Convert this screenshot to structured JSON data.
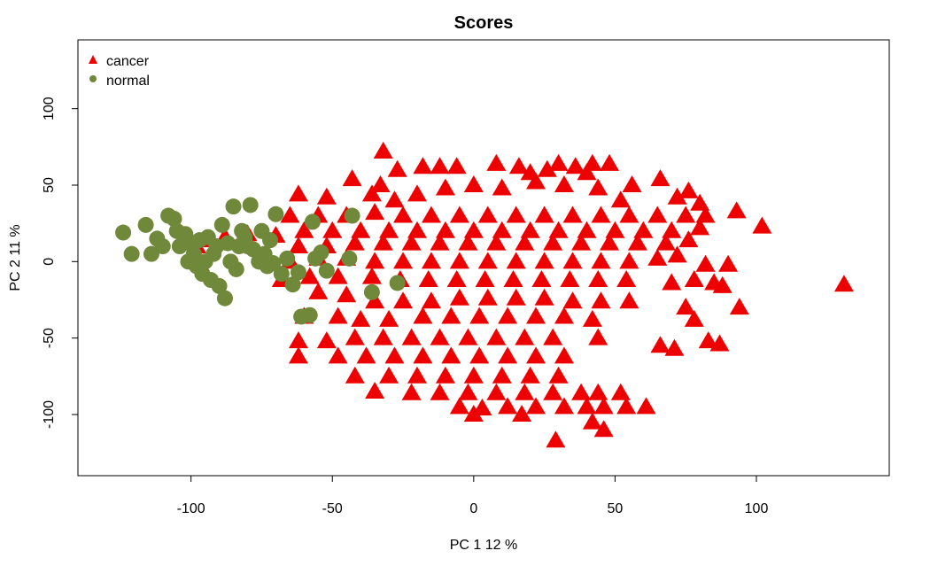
{
  "chart_data": {
    "type": "scatter",
    "title": "Scores",
    "xlabel": "PC 1 12 %",
    "ylabel": "PC 2 11 %",
    "xlim": [
      -140,
      147
    ],
    "ylim": [
      -140,
      145
    ],
    "x_ticks": [
      -100,
      -50,
      0,
      50,
      100
    ],
    "y_ticks": [
      -100,
      -50,
      0,
      50,
      100
    ],
    "x_tick_labels": [
      "-100",
      "-50",
      "0",
      "50",
      "100"
    ],
    "y_tick_labels": [
      "-100",
      "-50",
      "0",
      "50",
      "100"
    ],
    "grid": false,
    "legend_position": "top-left",
    "series": [
      {
        "name": "cancer",
        "marker": "triangle",
        "color": "#ee0000",
        "points": [
          [
            -32,
            72
          ],
          [
            -27,
            60
          ],
          [
            -18,
            62
          ],
          [
            -12,
            62
          ],
          [
            -6,
            62
          ],
          [
            8,
            64
          ],
          [
            16,
            62
          ],
          [
            30,
            64
          ],
          [
            36,
            62
          ],
          [
            42,
            64
          ],
          [
            48,
            64
          ],
          [
            26,
            60
          ],
          [
            20,
            58
          ],
          [
            40,
            58
          ],
          [
            -62,
            44
          ],
          [
            -52,
            42
          ],
          [
            -43,
            54
          ],
          [
            -33,
            50
          ],
          [
            -36,
            44
          ],
          [
            -28,
            40
          ],
          [
            -20,
            44
          ],
          [
            -10,
            48
          ],
          [
            0,
            50
          ],
          [
            10,
            48
          ],
          [
            22,
            52
          ],
          [
            32,
            50
          ],
          [
            44,
            48
          ],
          [
            56,
            50
          ],
          [
            66,
            54
          ],
          [
            52,
            40
          ],
          [
            72,
            42
          ],
          [
            76,
            46
          ],
          [
            -65,
            30
          ],
          [
            -55,
            30
          ],
          [
            -45,
            30
          ],
          [
            -35,
            32
          ],
          [
            -25,
            30
          ],
          [
            -15,
            30
          ],
          [
            -5,
            30
          ],
          [
            5,
            30
          ],
          [
            15,
            30
          ],
          [
            25,
            30
          ],
          [
            35,
            30
          ],
          [
            45,
            30
          ],
          [
            55,
            30
          ],
          [
            65,
            30
          ],
          [
            75,
            30
          ],
          [
            80,
            38
          ],
          [
            82,
            30
          ],
          [
            93,
            33
          ],
          [
            -60,
            20
          ],
          [
            -50,
            20
          ],
          [
            -40,
            20
          ],
          [
            -30,
            20
          ],
          [
            -20,
            20
          ],
          [
            -10,
            20
          ],
          [
            0,
            20
          ],
          [
            10,
            20
          ],
          [
            20,
            20
          ],
          [
            30,
            20
          ],
          [
            40,
            20
          ],
          [
            50,
            20
          ],
          [
            60,
            20
          ],
          [
            70,
            20
          ],
          [
            80,
            22
          ],
          [
            102,
            23
          ],
          [
            -70,
            17
          ],
          [
            -80,
            18
          ],
          [
            -88,
            16
          ],
          [
            -95,
            14
          ],
          [
            -98,
            10
          ],
          [
            -62,
            10
          ],
          [
            -52,
            10
          ],
          [
            -42,
            12
          ],
          [
            -32,
            12
          ],
          [
            -22,
            12
          ],
          [
            -12,
            12
          ],
          [
            -2,
            12
          ],
          [
            8,
            12
          ],
          [
            18,
            12
          ],
          [
            28,
            12
          ],
          [
            38,
            12
          ],
          [
            48,
            12
          ],
          [
            58,
            12
          ],
          [
            68,
            12
          ],
          [
            76,
            14
          ],
          [
            -65,
            0
          ],
          [
            -55,
            2
          ],
          [
            -45,
            2
          ],
          [
            -35,
            0
          ],
          [
            -25,
            0
          ],
          [
            -15,
            0
          ],
          [
            -5,
            0
          ],
          [
            5,
            0
          ],
          [
            15,
            0
          ],
          [
            25,
            0
          ],
          [
            35,
            0
          ],
          [
            45,
            0
          ],
          [
            55,
            0
          ],
          [
            65,
            2
          ],
          [
            72,
            4
          ],
          [
            82,
            -2
          ],
          [
            90,
            -2
          ],
          [
            -68,
            -12
          ],
          [
            -58,
            -10
          ],
          [
            -48,
            -10
          ],
          [
            -36,
            -10
          ],
          [
            -26,
            -12
          ],
          [
            -16,
            -12
          ],
          [
            -6,
            -12
          ],
          [
            4,
            -12
          ],
          [
            14,
            -12
          ],
          [
            24,
            -12
          ],
          [
            34,
            -12
          ],
          [
            44,
            -12
          ],
          [
            54,
            -12
          ],
          [
            70,
            -14
          ],
          [
            78,
            -12
          ],
          [
            85,
            -14
          ],
          [
            88,
            -16
          ],
          [
            131,
            -15
          ],
          [
            -55,
            -20
          ],
          [
            -45,
            -22
          ],
          [
            -35,
            -26
          ],
          [
            -25,
            -26
          ],
          [
            -15,
            -26
          ],
          [
            -5,
            -24
          ],
          [
            5,
            -24
          ],
          [
            15,
            -24
          ],
          [
            25,
            -24
          ],
          [
            35,
            -26
          ],
          [
            45,
            -26
          ],
          [
            55,
            -26
          ],
          [
            75,
            -30
          ],
          [
            94,
            -30
          ],
          [
            -60,
            -36
          ],
          [
            -48,
            -36
          ],
          [
            -40,
            -38
          ],
          [
            -30,
            -38
          ],
          [
            -18,
            -36
          ],
          [
            -8,
            -36
          ],
          [
            2,
            -36
          ],
          [
            12,
            -36
          ],
          [
            22,
            -36
          ],
          [
            32,
            -36
          ],
          [
            42,
            -38
          ],
          [
            78,
            -38
          ],
          [
            -62,
            -52
          ],
          [
            -52,
            -52
          ],
          [
            -42,
            -50
          ],
          [
            -32,
            -50
          ],
          [
            -22,
            -50
          ],
          [
            -12,
            -50
          ],
          [
            -2,
            -50
          ],
          [
            8,
            -50
          ],
          [
            18,
            -50
          ],
          [
            28,
            -50
          ],
          [
            44,
            -50
          ],
          [
            66,
            -55
          ],
          [
            71,
            -57
          ],
          [
            83,
            -52
          ],
          [
            87,
            -54
          ],
          [
            -62,
            -62
          ],
          [
            -48,
            -62
          ],
          [
            -38,
            -62
          ],
          [
            -28,
            -62
          ],
          [
            -18,
            -62
          ],
          [
            -8,
            -62
          ],
          [
            2,
            -62
          ],
          [
            12,
            -62
          ],
          [
            22,
            -62
          ],
          [
            32,
            -62
          ],
          [
            -42,
            -75
          ],
          [
            -30,
            -75
          ],
          [
            -20,
            -75
          ],
          [
            -10,
            -75
          ],
          [
            0,
            -75
          ],
          [
            10,
            -75
          ],
          [
            20,
            -75
          ],
          [
            30,
            -75
          ],
          [
            -35,
            -85
          ],
          [
            -22,
            -86
          ],
          [
            -12,
            -86
          ],
          [
            -2,
            -86
          ],
          [
            8,
            -86
          ],
          [
            18,
            -86
          ],
          [
            28,
            -86
          ],
          [
            38,
            -86
          ],
          [
            44,
            -86
          ],
          [
            52,
            -86
          ],
          [
            -5,
            -95
          ],
          [
            3,
            -96
          ],
          [
            12,
            -95
          ],
          [
            22,
            -95
          ],
          [
            32,
            -95
          ],
          [
            40,
            -95
          ],
          [
            46,
            -95
          ],
          [
            54,
            -95
          ],
          [
            61,
            -95
          ],
          [
            0,
            -100
          ],
          [
            17,
            -100
          ],
          [
            42,
            -105
          ],
          [
            46,
            -110
          ],
          [
            29,
            -117
          ]
        ]
      },
      {
        "name": "normal",
        "marker": "circle",
        "color": "#6f883a",
        "points": [
          [
            -124,
            19
          ],
          [
            -121,
            5
          ],
          [
            -116,
            24
          ],
          [
            -114,
            5
          ],
          [
            -112,
            15
          ],
          [
            -110,
            10
          ],
          [
            -108,
            30
          ],
          [
            -106,
            28
          ],
          [
            -105,
            20
          ],
          [
            -104,
            10
          ],
          [
            -102,
            18
          ],
          [
            -101,
            0
          ],
          [
            -100,
            12
          ],
          [
            -99,
            5
          ],
          [
            -98,
            -3
          ],
          [
            -97,
            14
          ],
          [
            -96,
            -8
          ],
          [
            -95,
            0
          ],
          [
            -94,
            16
          ],
          [
            -93,
            -12
          ],
          [
            -92,
            5
          ],
          [
            -91,
            10
          ],
          [
            -90,
            -16
          ],
          [
            -89,
            24
          ],
          [
            -88,
            -24
          ],
          [
            -87,
            12
          ],
          [
            -86,
            0
          ],
          [
            -85,
            36
          ],
          [
            -84,
            -5
          ],
          [
            -83,
            10
          ],
          [
            -82,
            20
          ],
          [
            -81,
            16
          ],
          [
            -80,
            10
          ],
          [
            -79,
            37
          ],
          [
            -78,
            8
          ],
          [
            -76,
            0
          ],
          [
            -75,
            20
          ],
          [
            -74,
            5
          ],
          [
            -73,
            -3
          ],
          [
            -72,
            14
          ],
          [
            -71,
            -1
          ],
          [
            -70,
            31
          ],
          [
            -68,
            -8
          ],
          [
            -66,
            2
          ],
          [
            -64,
            -15
          ],
          [
            -62,
            -7
          ],
          [
            -61,
            -36
          ],
          [
            -58,
            -35
          ],
          [
            -57,
            26
          ],
          [
            -56,
            2
          ],
          [
            -54,
            6
          ],
          [
            -52,
            -6
          ],
          [
            -44,
            2
          ],
          [
            -43,
            30
          ],
          [
            -36,
            -20
          ],
          [
            -27,
            -14
          ]
        ]
      }
    ]
  }
}
